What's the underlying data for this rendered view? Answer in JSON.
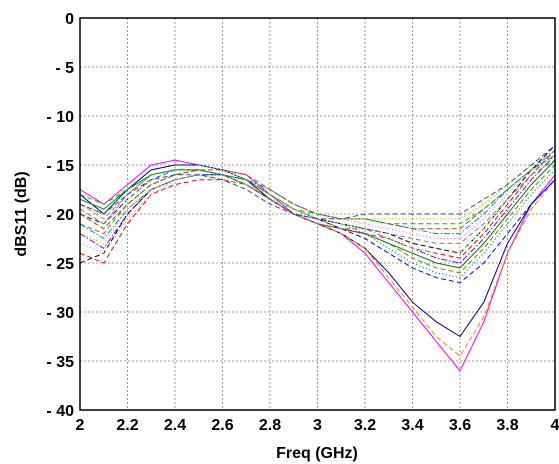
{
  "chart_data": {
    "type": "line",
    "title": "",
    "xlabel": "Freq (GHz)",
    "ylabel": "dBS11 (dB)",
    "xlim": [
      2,
      4
    ],
    "ylim": [
      -40,
      0
    ],
    "x_ticks": [
      2,
      2.2,
      2.4,
      2.6,
      2.8,
      3,
      3.2,
      3.4,
      3.6,
      3.8,
      4
    ],
    "x_tick_labels": [
      "2",
      "2.2",
      "2.4",
      "2.6",
      "2.8",
      "3",
      "3.2",
      "3.4",
      "3.6",
      "3.8",
      "4"
    ],
    "y_ticks": [
      0,
      -5,
      -10,
      -15,
      -20,
      -25,
      -30,
      -35,
      -40
    ],
    "y_tick_labels": [
      "0",
      "- 5",
      "- 10",
      "- 15",
      "- 20",
      "- 25",
      "- 30",
      "- 35",
      "- 40"
    ],
    "grid": true,
    "x": [
      2,
      2.1,
      2.2,
      2.3,
      2.4,
      2.5,
      2.6,
      2.7,
      2.8,
      2.9,
      3,
      3.1,
      3.2,
      3.3,
      3.4,
      3.5,
      3.6,
      3.7,
      3.8,
      3.9,
      4
    ],
    "series": [
      {
        "color": "#ff00ff",
        "dash": "solid",
        "values": [
          -17.5,
          -19,
          -17,
          -15,
          -14.5,
          -15,
          -15.5,
          -16,
          -18,
          -20,
          -21,
          -22,
          -24,
          -27,
          -30,
          -33,
          -36,
          -31,
          -24,
          -19,
          -16
        ]
      },
      {
        "color": "#000080",
        "dash": "solid",
        "values": [
          -18,
          -20,
          -17.5,
          -15.5,
          -15,
          -15,
          -15.5,
          -16.5,
          -18.5,
          -20,
          -21,
          -22,
          -23.5,
          -26,
          -29,
          -31,
          -32.5,
          -29,
          -23,
          -19,
          -16.5
        ]
      },
      {
        "color": "#ff8000",
        "dash": "dashed",
        "values": [
          -19,
          -20.5,
          -18,
          -16,
          -15.5,
          -15.5,
          -16,
          -17,
          -18.5,
          -20,
          -21,
          -22,
          -23.5,
          -26.5,
          -29.5,
          -32.5,
          -34.5,
          -30.5,
          -24,
          -19.5,
          -16.5
        ]
      },
      {
        "color": "#0000ff",
        "dash": "dashed",
        "values": [
          -20,
          -21,
          -18.5,
          -16.5,
          -15.5,
          -15.5,
          -16,
          -17,
          -18.5,
          -20,
          -20.5,
          -21.5,
          -22.5,
          -24,
          -25.5,
          -26.5,
          -27,
          -25,
          -22,
          -19,
          -16.5
        ]
      },
      {
        "color": "#00a0a0",
        "dash": "dotted",
        "values": [
          -19,
          -20,
          -17.5,
          -16,
          -15.5,
          -15.5,
          -16,
          -17,
          -18.5,
          -19.5,
          -20.5,
          -21,
          -22,
          -23.5,
          -25,
          -26,
          -26.5,
          -24,
          -21,
          -18,
          -15.5
        ]
      },
      {
        "color": "#808000",
        "dash": "dashed",
        "values": [
          -21,
          -22,
          -19,
          -17,
          -16,
          -15.5,
          -16,
          -16.5,
          -18,
          -19.5,
          -20.5,
          -21.5,
          -22,
          -23,
          -24.5,
          -25.5,
          -26,
          -23.5,
          -20.5,
          -17.5,
          -15
        ]
      },
      {
        "color": "#008000",
        "dash": "solid",
        "values": [
          -18.5,
          -19.5,
          -17.5,
          -16,
          -15.5,
          -15.5,
          -16,
          -17,
          -18.5,
          -20,
          -21,
          -21.5,
          -22,
          -23,
          -24,
          -25,
          -25.5,
          -23,
          -20,
          -17,
          -14.5
        ]
      },
      {
        "color": "#8000ff",
        "dash": "dashdot",
        "values": [
          -22,
          -23.5,
          -20,
          -17.5,
          -16.5,
          -16,
          -16,
          -16.5,
          -18,
          -19.5,
          -20.5,
          -21,
          -21.5,
          -22.5,
          -23.5,
          -24.5,
          -25,
          -22.5,
          -19.5,
          -16.5,
          -14
        ]
      },
      {
        "color": "#ff0000",
        "dash": "dashed",
        "values": [
          -24,
          -25,
          -21,
          -18,
          -17,
          -16.5,
          -16.5,
          -17,
          -18.5,
          -20,
          -21,
          -21.5,
          -22,
          -22.5,
          -23.5,
          -24,
          -24.5,
          -22,
          -19,
          -16,
          -13.5
        ]
      },
      {
        "color": "#000000",
        "dash": "dashed",
        "values": [
          -25,
          -24,
          -20,
          -17.5,
          -16.5,
          -16,
          -16,
          -16.5,
          -18,
          -19.5,
          -20.5,
          -21,
          -21.5,
          -22,
          -23,
          -23.5,
          -24,
          -21.5,
          -18.5,
          -15.5,
          -13
        ]
      },
      {
        "color": "#80ff80",
        "dash": "dotted",
        "values": [
          -20,
          -21.5,
          -18.5,
          -16.5,
          -15.5,
          -15,
          -15.5,
          -16.5,
          -18,
          -19.5,
          -20.5,
          -21,
          -21.5,
          -22.5,
          -23.5,
          -24,
          -24,
          -21.5,
          -18.5,
          -16,
          -14
        ]
      },
      {
        "color": "#808080",
        "dash": "dashed",
        "values": [
          -19.5,
          -21,
          -18,
          -16,
          -15.5,
          -15.5,
          -16,
          -17,
          -18.5,
          -20,
          -21,
          -21.5,
          -21.5,
          -22,
          -22.5,
          -23,
          -23,
          -21,
          -18.5,
          -16,
          -14.5
        ]
      },
      {
        "color": "#ff80ff",
        "dash": "dotted",
        "values": [
          -23,
          -24,
          -20.5,
          -18,
          -16.5,
          -16,
          -16,
          -16.5,
          -17.5,
          -19,
          -20,
          -20.5,
          -21,
          -21.5,
          -22,
          -22.5,
          -22.5,
          -20.5,
          -18,
          -15.5,
          -13.5
        ]
      },
      {
        "color": "#0080ff",
        "dash": "dashdot",
        "values": [
          -21,
          -22.5,
          -19.5,
          -17.5,
          -16.5,
          -16,
          -16,
          -16.5,
          -17.5,
          -19,
          -20,
          -20.5,
          -20.5,
          -21,
          -21.5,
          -22,
          -22,
          -20,
          -17.5,
          -15.5,
          -13.5
        ]
      },
      {
        "color": "#a05000",
        "dash": "dashed",
        "values": [
          -20,
          -21.5,
          -19,
          -17,
          -16,
          -15.5,
          -15.5,
          -16,
          -17.5,
          -19,
          -20,
          -20.5,
          -20.5,
          -21,
          -21.5,
          -21.5,
          -21.5,
          -19.5,
          -17.5,
          -15.5,
          -14
        ]
      },
      {
        "color": "#00c000",
        "dash": "dashed",
        "values": [
          -18,
          -19,
          -17.5,
          -16,
          -15.5,
          -15.5,
          -16,
          -16.5,
          -18,
          -19.5,
          -20,
          -20.5,
          -20.5,
          -21,
          -21,
          -21,
          -21,
          -19.5,
          -17.5,
          -15.5,
          -14
        ]
      },
      {
        "color": "#c0c000",
        "dash": "dotted",
        "values": [
          -22,
          -23,
          -19.5,
          -17.5,
          -16.5,
          -16,
          -16.5,
          -17,
          -18,
          -19.5,
          -20.5,
          -20.5,
          -20.5,
          -20.5,
          -20.5,
          -20.5,
          -20.5,
          -19,
          -17,
          -15,
          -13.5
        ]
      },
      {
        "color": "#4040c0",
        "dash": "dashed",
        "values": [
          -19,
          -20,
          -18,
          -16.5,
          -16,
          -16,
          -16.5,
          -17.5,
          -19,
          -20,
          -20.5,
          -20.5,
          -20,
          -20,
          -20,
          -20,
          -20,
          -18.5,
          -17,
          -15,
          -13
        ]
      }
    ]
  }
}
